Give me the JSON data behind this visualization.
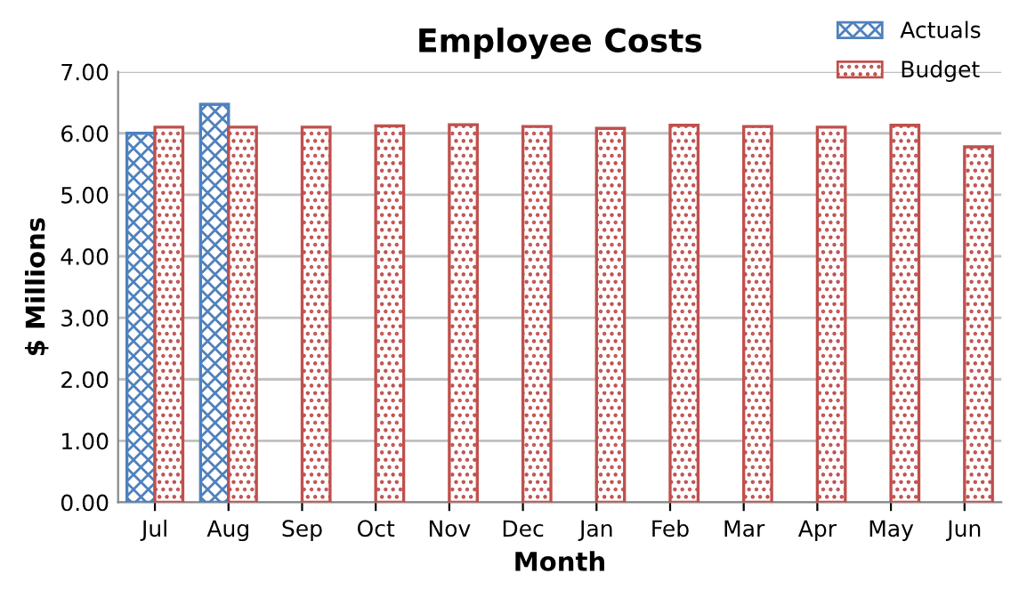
{
  "chart_data": {
    "type": "bar",
    "title": "Employee Costs",
    "xlabel": "Month",
    "ylabel": "$ Millions",
    "categories": [
      "Jul",
      "Aug",
      "Sep",
      "Oct",
      "Nov",
      "Dec",
      "Jan",
      "Feb",
      "Mar",
      "Apr",
      "May",
      "Jun"
    ],
    "series": [
      {
        "name": "Actuals",
        "color": "#4f81bd",
        "values": [
          6.0,
          6.47,
          null,
          null,
          null,
          null,
          null,
          null,
          null,
          null,
          null,
          null
        ]
      },
      {
        "name": "Budget",
        "color": "#c0504d",
        "values": [
          6.1,
          6.1,
          6.1,
          6.12,
          6.14,
          6.11,
          6.08,
          6.13,
          6.11,
          6.1,
          6.13,
          5.78
        ]
      }
    ],
    "ylim": [
      0,
      7
    ],
    "yticks": [
      {
        "value": 0,
        "label": "0.00"
      },
      {
        "value": 1,
        "label": "1.00"
      },
      {
        "value": 2,
        "label": "2.00"
      },
      {
        "value": 3,
        "label": "3.00"
      },
      {
        "value": 4,
        "label": "4.00"
      },
      {
        "value": 5,
        "label": "5.00"
      },
      {
        "value": 6,
        "label": "6.00"
      },
      {
        "value": 7,
        "label": "7.00"
      }
    ],
    "grid": "y",
    "legend": "top right"
  }
}
